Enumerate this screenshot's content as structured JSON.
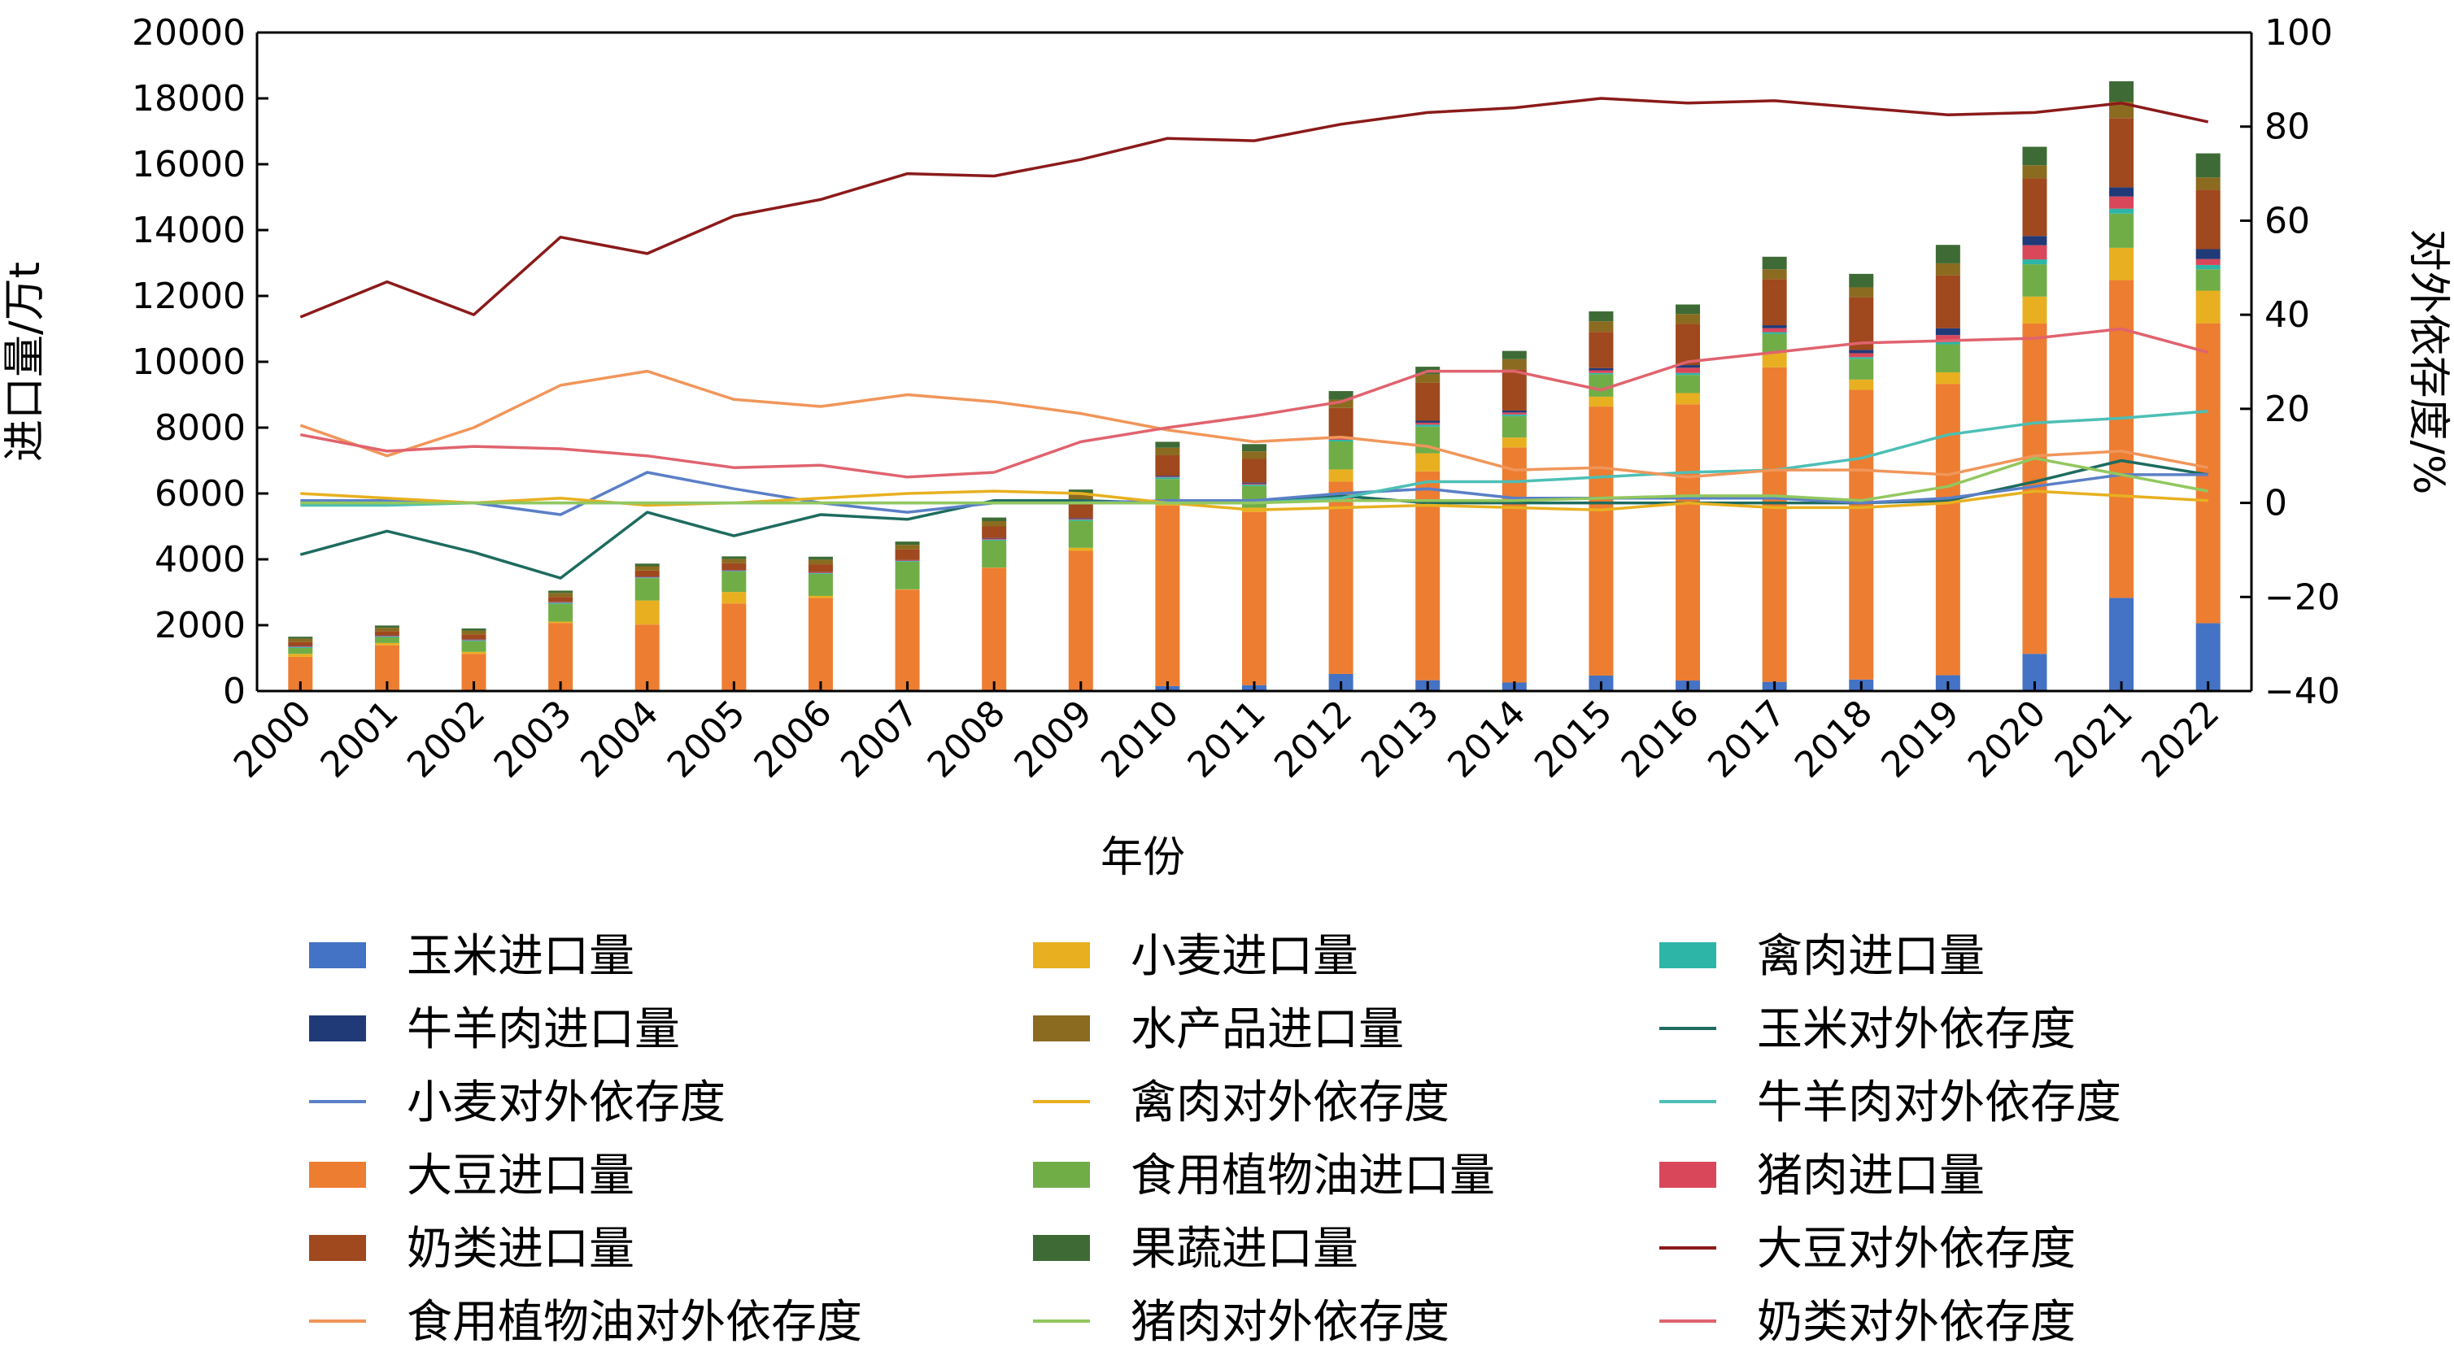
{
  "chart_data": {
    "type": "bar+line",
    "xlabel": "年份",
    "ylabel_left": "进口量/万t",
    "ylabel_right": "对外依存度/%",
    "ylim_left": [
      0,
      20000
    ],
    "ylim_right": [
      -40,
      100
    ],
    "yticks_left": [
      "0",
      "2000",
      "4000",
      "6000",
      "8000",
      "10000",
      "12000",
      "14000",
      "16000",
      "18000",
      "20000"
    ],
    "yticks_right": [
      "−40",
      "−20",
      "0",
      "20",
      "40",
      "60",
      "80",
      "100"
    ],
    "categories": [
      "2000",
      "2001",
      "2002",
      "2003",
      "2004",
      "2005",
      "2006",
      "2007",
      "2008",
      "2009",
      "2010",
      "2011",
      "2012",
      "2013",
      "2014",
      "2015",
      "2016",
      "2017",
      "2018",
      "2019",
      "2020",
      "2021",
      "2022"
    ],
    "legend_columns": 3,
    "bar_series": [
      {
        "name": "玉米进口量",
        "color": "#4472C4",
        "values": [
          0,
          0,
          0,
          0,
          0,
          0,
          0,
          0,
          0,
          0,
          150,
          180,
          520,
          330,
          260,
          470,
          320,
          280,
          350,
          480,
          1130,
          2830,
          2060
        ]
      },
      {
        "name": "大豆进口量",
        "color": "#ED7D31",
        "values": [
          1040,
          1390,
          1130,
          2070,
          2020,
          2660,
          2830,
          3080,
          3740,
          4260,
          5480,
          5260,
          5840,
          6340,
          7140,
          8170,
          8390,
          9550,
          8800,
          8850,
          10030,
          9650,
          9110
        ]
      },
      {
        "name": "小麦进口量",
        "color": "#E8B020",
        "values": [
          90,
          70,
          60,
          40,
          730,
          350,
          60,
          10,
          10,
          90,
          120,
          130,
          370,
          550,
          300,
          300,
          340,
          440,
          310,
          350,
          820,
          980,
          990
        ]
      },
      {
        "name": "食用植物油进口量",
        "color": "#70AD47",
        "values": [
          180,
          170,
          320,
          540,
          680,
          620,
          670,
          840,
          820,
          820,
          690,
          660,
          850,
          810,
          650,
          680,
          550,
          580,
          630,
          850,
          980,
          1040,
          650
        ]
      },
      {
        "name": "禽肉进口量",
        "color": "#2DB5A8",
        "values": [
          30,
          30,
          30,
          30,
          20,
          20,
          20,
          20,
          30,
          40,
          50,
          40,
          50,
          60,
          50,
          40,
          60,
          50,
          50,
          80,
          150,
          150,
          130
        ]
      },
      {
        "name": "猪肉进口量",
        "color": "#D9475A",
        "values": [
          20,
          20,
          20,
          20,
          20,
          20,
          20,
          20,
          30,
          30,
          20,
          30,
          50,
          60,
          60,
          80,
          160,
          120,
          120,
          200,
          430,
          370,
          180
        ]
      },
      {
        "name": "牛羊肉进口量",
        "color": "#203A78",
        "values": [
          10,
          10,
          10,
          10,
          10,
          10,
          10,
          10,
          20,
          20,
          30,
          30,
          40,
          60,
          60,
          70,
          80,
          90,
          100,
          210,
          280,
          280,
          300
        ]
      },
      {
        "name": "奶类进口量",
        "color": "#A0481E",
        "values": [
          120,
          130,
          150,
          150,
          180,
          200,
          240,
          320,
          350,
          520,
          620,
          720,
          880,
          1150,
          1250,
          1100,
          1250,
          1400,
          1600,
          1600,
          1750,
          2100,
          1800
        ]
      },
      {
        "name": "水产品进口量",
        "color": "#8B6B20",
        "values": [
          100,
          100,
          110,
          120,
          130,
          130,
          140,
          140,
          160,
          180,
          230,
          230,
          250,
          260,
          310,
          320,
          300,
          300,
          300,
          370,
          400,
          500,
          380
        ]
      },
      {
        "name": "果蔬进口量",
        "color": "#3E6B35",
        "values": [
          60,
          70,
          70,
          70,
          80,
          80,
          90,
          100,
          110,
          160,
          180,
          220,
          260,
          230,
          250,
          300,
          290,
          380,
          410,
          560,
          560,
          620,
          730
        ]
      }
    ],
    "line_series": [
      {
        "name": "玉米对外依存度",
        "color": "#1E6B5F",
        "values": [
          -11,
          -6,
          -10.5,
          -16,
          -2,
          -7,
          -2.5,
          -3.5,
          0.5,
          0.5,
          0,
          0,
          1.5,
          0,
          0,
          0,
          0,
          0,
          0,
          0.5,
          4.5,
          9,
          6
        ]
      },
      {
        "name": "小麦对外依存度",
        "color": "#5B7FC7",
        "values": [
          0.5,
          0.5,
          0,
          -2.5,
          6.5,
          3,
          0,
          -2,
          0,
          0,
          0.5,
          0.5,
          2,
          3,
          1,
          1,
          1,
          1,
          0,
          1,
          3.5,
          6,
          6
        ]
      },
      {
        "name": "禽肉对外依存度",
        "color": "#E8B020",
        "values": [
          2,
          1,
          0,
          1,
          -0.5,
          0,
          1,
          2,
          2.5,
          2,
          0,
          -1.5,
          -1,
          -0.5,
          -1,
          -1.5,
          0,
          -1,
          -1,
          0,
          2.5,
          1.5,
          0.5
        ]
      },
      {
        "name": "牛羊肉对外依存度",
        "color": "#4DBFB5",
        "values": [
          -0.5,
          -0.5,
          0,
          0,
          0,
          0,
          0,
          0,
          0,
          0,
          0,
          0,
          1,
          4.5,
          4.5,
          5.5,
          6.5,
          7,
          9.5,
          14.5,
          17,
          18,
          19.5
        ]
      },
      {
        "name": "大豆对外依存度",
        "color": "#8B1A1A",
        "values": [
          39.5,
          47,
          40,
          56.5,
          53,
          61,
          64.5,
          70,
          69.5,
          73,
          77.5,
          77,
          80.5,
          83,
          84,
          86,
          85,
          85.5,
          84,
          82.5,
          83,
          85,
          81
        ]
      },
      {
        "name": "食用植物油对外依存度",
        "color": "#F0965A",
        "values": [
          16.5,
          10,
          16,
          25,
          28,
          22,
          20.5,
          23,
          21.5,
          19,
          15.5,
          13,
          14,
          12,
          7,
          7.5,
          5.5,
          7,
          7,
          6,
          10,
          11,
          7.5
        ]
      },
      {
        "name": "猪肉对外依存度",
        "color": "#92C75F",
        "values": [
          0,
          0,
          0,
          0,
          0,
          0,
          0,
          0,
          0,
          0,
          0,
          0,
          0.5,
          0.5,
          0.5,
          1,
          1.5,
          1.5,
          0.5,
          3.5,
          9.5,
          6,
          2.5
        ]
      },
      {
        "name": "奶类对外依存度",
        "color": "#E0636E",
        "values": [
          14.5,
          11,
          12,
          11.5,
          10,
          7.5,
          8,
          5.5,
          6.5,
          13,
          16,
          18.5,
          21.5,
          28,
          28,
          24,
          30,
          32,
          34,
          34.5,
          35,
          37,
          32
        ]
      }
    ],
    "legend": [
      {
        "name": "玉米进口量",
        "kind": "bar",
        "color": "#4472C4"
      },
      {
        "name": "小麦进口量",
        "kind": "bar",
        "color": "#E8B020"
      },
      {
        "name": "禽肉进口量",
        "kind": "bar",
        "color": "#2DB5A8"
      },
      {
        "name": "牛羊肉进口量",
        "kind": "bar",
        "color": "#203A78"
      },
      {
        "name": "水产品进口量",
        "kind": "bar",
        "color": "#8B6B20"
      },
      {
        "name": "玉米对外依存度",
        "kind": "line",
        "color": "#1E6B5F"
      },
      {
        "name": "小麦对外依存度",
        "kind": "line",
        "color": "#5B7FC7"
      },
      {
        "name": "禽肉对外依存度",
        "kind": "line",
        "color": "#E8B020"
      },
      {
        "name": "牛羊肉对外依存度",
        "kind": "line",
        "color": "#4DBFB5"
      },
      {
        "name": "大豆进口量",
        "kind": "bar",
        "color": "#ED7D31"
      },
      {
        "name": "食用植物油进口量",
        "kind": "bar",
        "color": "#70AD47"
      },
      {
        "name": "猪肉进口量",
        "kind": "bar",
        "color": "#D9475A"
      },
      {
        "name": "奶类进口量",
        "kind": "bar",
        "color": "#A0481E"
      },
      {
        "name": "果蔬进口量",
        "kind": "bar",
        "color": "#3E6B35"
      },
      {
        "name": "大豆对外依存度",
        "kind": "line",
        "color": "#8B1A1A"
      },
      {
        "name": "食用植物油对外依存度",
        "kind": "line",
        "color": "#F0965A"
      },
      {
        "name": "猪肉对外依存度",
        "kind": "line",
        "color": "#92C75F"
      },
      {
        "name": "奶类对外依存度",
        "kind": "line",
        "color": "#E0636E"
      }
    ]
  }
}
